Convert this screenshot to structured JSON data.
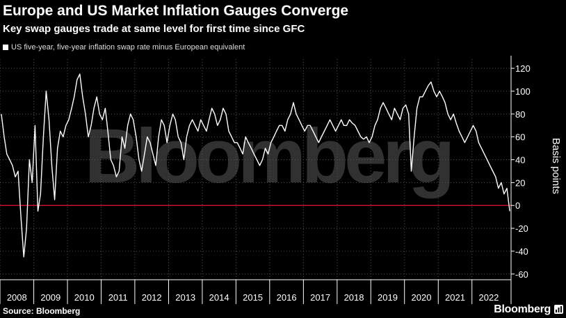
{
  "header": {
    "title": "Europe and US Market Inflation Gauges Converge",
    "subtitle": "Key swap gauges trade at same level for first time since GFC"
  },
  "footer": {
    "source": "Source: Bloomberg",
    "brand": "Bloomberg",
    "watermark": "Bloomberg"
  },
  "colors": {
    "background": "#000000",
    "series": "#ffffff",
    "zero_line": "#c8102e",
    "grid": "#555555"
  },
  "chart_data": {
    "type": "line",
    "title": "Europe and US Market Inflation Gauges Converge",
    "subtitle": "Key swap gauges trade at same level for first time since GFC",
    "ylabel": "Basis points",
    "ylim": [
      -65,
      128
    ],
    "yticks": [
      120,
      100,
      80,
      60,
      40,
      20,
      0,
      -20,
      -40,
      -60
    ],
    "x_tick_labels": [
      "2008",
      "2009",
      "2010",
      "2011",
      "2012",
      "2013",
      "2014",
      "2015",
      "2016",
      "2017",
      "2018",
      "2019",
      "2020",
      "2021",
      "2022"
    ],
    "xlim": [
      "2008-01-01",
      "2023-03-01"
    ],
    "legend_position": "top-left",
    "grid": true,
    "reference_line": 0,
    "series": [
      {
        "name": "US five-year, five-year inflation swap rate minus European equivalent",
        "x": [
          "2008-01",
          "2008-02",
          "2008-03",
          "2008-04",
          "2008-05",
          "2008-06",
          "2008-07",
          "2008-08",
          "2008-09",
          "2008-10",
          "2008-11",
          "2008-12",
          "2009-01",
          "2009-02",
          "2009-03",
          "2009-04",
          "2009-05",
          "2009-06",
          "2009-07",
          "2009-08",
          "2009-09",
          "2009-10",
          "2009-11",
          "2009-12",
          "2010-01",
          "2010-02",
          "2010-03",
          "2010-04",
          "2010-05",
          "2010-06",
          "2010-07",
          "2010-08",
          "2010-09",
          "2010-10",
          "2010-11",
          "2010-12",
          "2011-01",
          "2011-02",
          "2011-03",
          "2011-04",
          "2011-05",
          "2011-06",
          "2011-07",
          "2011-08",
          "2011-09",
          "2011-10",
          "2011-11",
          "2011-12",
          "2012-01",
          "2012-02",
          "2012-03",
          "2012-04",
          "2012-05",
          "2012-06",
          "2012-07",
          "2012-08",
          "2012-09",
          "2012-10",
          "2012-11",
          "2012-12",
          "2013-01",
          "2013-02",
          "2013-03",
          "2013-04",
          "2013-05",
          "2013-06",
          "2013-07",
          "2013-08",
          "2013-09",
          "2013-10",
          "2013-11",
          "2013-12",
          "2014-01",
          "2014-02",
          "2014-03",
          "2014-04",
          "2014-05",
          "2014-06",
          "2014-07",
          "2014-08",
          "2014-09",
          "2014-10",
          "2014-11",
          "2014-12",
          "2015-01",
          "2015-02",
          "2015-03",
          "2015-04",
          "2015-05",
          "2015-06",
          "2015-07",
          "2015-08",
          "2015-09",
          "2015-10",
          "2015-11",
          "2015-12",
          "2016-01",
          "2016-02",
          "2016-03",
          "2016-04",
          "2016-05",
          "2016-06",
          "2016-07",
          "2016-08",
          "2016-09",
          "2016-10",
          "2016-11",
          "2016-12",
          "2017-01",
          "2017-02",
          "2017-03",
          "2017-04",
          "2017-05",
          "2017-06",
          "2017-07",
          "2017-08",
          "2017-09",
          "2017-10",
          "2017-11",
          "2017-12",
          "2018-01",
          "2018-02",
          "2018-03",
          "2018-04",
          "2018-05",
          "2018-06",
          "2018-07",
          "2018-08",
          "2018-09",
          "2018-10",
          "2018-11",
          "2018-12",
          "2019-01",
          "2019-02",
          "2019-03",
          "2019-04",
          "2019-05",
          "2019-06",
          "2019-07",
          "2019-08",
          "2019-09",
          "2019-10",
          "2019-11",
          "2019-12",
          "2020-01",
          "2020-02",
          "2020-03",
          "2020-04",
          "2020-05",
          "2020-06",
          "2020-07",
          "2020-08",
          "2020-09",
          "2020-10",
          "2020-11",
          "2020-12",
          "2021-01",
          "2021-02",
          "2021-03",
          "2021-04",
          "2021-05",
          "2021-06",
          "2021-07",
          "2021-08",
          "2021-09",
          "2021-10",
          "2021-11",
          "2021-12",
          "2022-01",
          "2022-02",
          "2022-03",
          "2022-04",
          "2022-05",
          "2022-06",
          "2022-07",
          "2022-08",
          "2022-09",
          "2022-10",
          "2022-11",
          "2022-12",
          "2023-01",
          "2023-02"
        ],
        "values": [
          80,
          60,
          45,
          40,
          35,
          25,
          30,
          -10,
          -45,
          -20,
          40,
          20,
          70,
          -5,
          10,
          60,
          100,
          75,
          35,
          5,
          50,
          65,
          60,
          70,
          75,
          85,
          95,
          110,
          115,
          95,
          80,
          60,
          70,
          85,
          95,
          80,
          75,
          85,
          65,
          40,
          35,
          25,
          30,
          60,
          50,
          70,
          80,
          75,
          60,
          40,
          30,
          45,
          60,
          55,
          45,
          35,
          60,
          75,
          70,
          55,
          70,
          80,
          75,
          60,
          55,
          40,
          60,
          70,
          75,
          70,
          65,
          75,
          70,
          65,
          75,
          85,
          80,
          70,
          75,
          85,
          80,
          65,
          60,
          55,
          55,
          50,
          45,
          60,
          55,
          50,
          45,
          40,
          35,
          40,
          50,
          45,
          55,
          60,
          65,
          70,
          70,
          65,
          75,
          80,
          90,
          80,
          75,
          70,
          65,
          70,
          70,
          65,
          60,
          55,
          60,
          65,
          70,
          75,
          70,
          65,
          70,
          75,
          70,
          70,
          75,
          72,
          70,
          65,
          60,
          58,
          60,
          55,
          60,
          70,
          75,
          85,
          90,
          85,
          80,
          75,
          85,
          80,
          75,
          85,
          88,
          80,
          30,
          60,
          85,
          95,
          95,
          100,
          105,
          108,
          100,
          95,
          100,
          95,
          90,
          80,
          75,
          80,
          72,
          65,
          60,
          55,
          60,
          65,
          70,
          65,
          55,
          50,
          45,
          40,
          35,
          30,
          25,
          15,
          20,
          10,
          15,
          -5
        ]
      }
    ]
  }
}
